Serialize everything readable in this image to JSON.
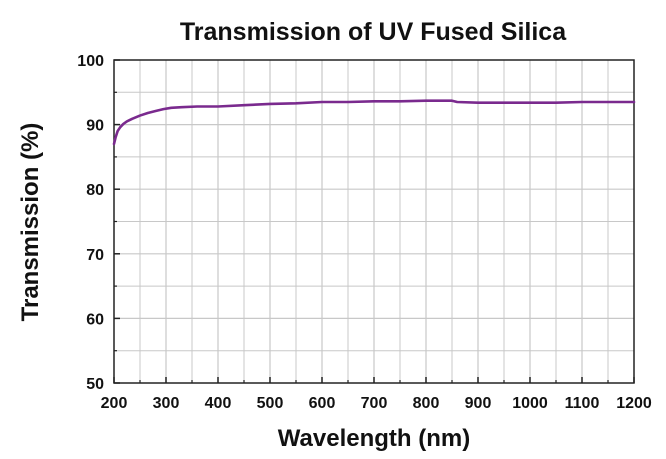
{
  "chart_data": {
    "type": "line",
    "title": "Transmission of UV Fused Silica",
    "xlabel": "Wavelength (nm)",
    "ylabel": "Transmission (%)",
    "xlim": [
      200,
      1200
    ],
    "ylim": [
      50,
      100
    ],
    "x_ticks": [
      200,
      300,
      400,
      500,
      600,
      700,
      800,
      900,
      1000,
      1100,
      1200
    ],
    "y_ticks": [
      50,
      60,
      70,
      80,
      90,
      100
    ],
    "x_minor_step": 50,
    "y_minor_step": 5,
    "grid": true,
    "legend": "none",
    "series": [
      {
        "name": "UV Fused Silica",
        "color": "#7a2a8e",
        "x": [
          200,
          203,
          207,
          212,
          218,
          225,
          235,
          250,
          265,
          280,
          295,
          310,
          330,
          360,
          400,
          450,
          500,
          550,
          600,
          650,
          700,
          750,
          800,
          850,
          860,
          900,
          950,
          1000,
          1050,
          1100,
          1150,
          1200
        ],
        "y": [
          87.0,
          88.0,
          89.0,
          89.6,
          90.1,
          90.5,
          90.9,
          91.4,
          91.8,
          92.1,
          92.4,
          92.6,
          92.7,
          92.8,
          92.8,
          93.0,
          93.2,
          93.3,
          93.5,
          93.5,
          93.6,
          93.6,
          93.7,
          93.7,
          93.5,
          93.4,
          93.4,
          93.4,
          93.4,
          93.5,
          93.5,
          93.5
        ]
      }
    ]
  }
}
